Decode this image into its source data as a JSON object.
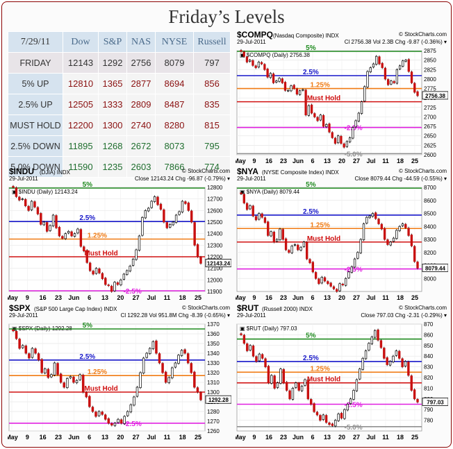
{
  "page": {
    "title": "Friday’s Levels"
  },
  "levels_table": {
    "date": "7/29/11",
    "columns": [
      "Dow",
      "S&P",
      "NAS",
      "NYSE",
      "Russell"
    ],
    "rows": [
      {
        "label": "FRIDAY",
        "kind": "fri",
        "values": [
          "12143",
          "1292",
          "2756",
          "8079",
          "797"
        ]
      },
      {
        "label": "5% UP",
        "kind": "up",
        "values": [
          "12810",
          "1365",
          "2877",
          "8694",
          "856"
        ]
      },
      {
        "label": "2.5% UP",
        "kind": "up",
        "values": [
          "12505",
          "1333",
          "2809",
          "8487",
          "835"
        ]
      },
      {
        "label": "MUST HOLD",
        "kind": "hold",
        "values": [
          "12200",
          "1300",
          "2740",
          "8280",
          "815"
        ]
      },
      {
        "label": "2.5% DOWN",
        "kind": "down",
        "values": [
          "11895",
          "1268",
          "2672",
          "8073",
          "795"
        ]
      },
      {
        "label": "5.0% DOWN",
        "kind": "down",
        "values": [
          "11590",
          "1235",
          "2603",
          "7866",
          "774"
        ]
      }
    ]
  },
  "level_colors": {
    "up5": "#1e8a1e",
    "up25": "#1515c8",
    "up125": "#f07a12",
    "hold": "#d01010",
    "down25": "#e020e0",
    "down5": "#909090"
  },
  "chart_data": [
    {
      "id": "compq",
      "type": "line",
      "title": "$COMPQ",
      "subtitle": "(Nasdaq Composite) INDX",
      "watermark": "© StockCharts.com",
      "date": "29-Jul-2011",
      "stats": "Cl 2756.38  Vol 2.3B  Chg -9.87 (-0.36%)",
      "legend": "$COMPQ (Daily) 2756.38",
      "last_label": "2756.38",
      "xlabels": [
        "May",
        "9",
        "16",
        "23",
        "Jun",
        "6",
        "13",
        "20",
        "27",
        "Jul",
        "11",
        "18",
        "25"
      ],
      "ylim": [
        2600,
        2875
      ],
      "yticks": [
        2600,
        2625,
        2650,
        2675,
        2700,
        2725,
        2750,
        2775,
        2800,
        2825,
        2850,
        2875
      ],
      "levels": [
        {
          "key": "up5",
          "value": 2877,
          "label": "5%"
        },
        {
          "key": "up25",
          "value": 2809,
          "label": "2.5%"
        },
        {
          "key": "up125",
          "value": 2775,
          "label": "1.25%"
        },
        {
          "key": "hold",
          "value": 2740,
          "label": "Must Hold"
        },
        {
          "key": "down25",
          "value": 2672,
          "label": "-2.5%"
        },
        {
          "key": "down5",
          "value": 2603,
          "label": "-5.0%"
        }
      ],
      "closes": [
        2873,
        2860,
        2845,
        2850,
        2836,
        2830,
        2845,
        2840,
        2825,
        2805,
        2815,
        2790,
        2795,
        2802,
        2790,
        2770,
        2770,
        2782,
        2775,
        2760,
        2769,
        2772,
        2705,
        2730,
        2710,
        2700,
        2690,
        2705,
        2675,
        2680,
        2660,
        2645,
        2630,
        2650,
        2630,
        2620,
        2635,
        2645,
        2672,
        2690,
        2710,
        2740,
        2780,
        2820,
        2830,
        2840,
        2860,
        2840,
        2830,
        2800,
        2785,
        2795,
        2790,
        2825,
        2835,
        2848,
        2850,
        2820,
        2790,
        2765,
        2756
      ]
    },
    {
      "id": "indu",
      "type": "line",
      "title": "$INDU",
      "subtitle": "(DJIA) INDX",
      "watermark": "© StockCharts.com",
      "date": "29-Jul-2011",
      "stats": "Close 12143.24  Chg -96.87 (-0.79%)",
      "legend": "$INDU (Daily) 12143.24",
      "last_label": "12143.24",
      "xlabels": [
        "May",
        "9",
        "16",
        "23",
        "Jun",
        "6",
        "13",
        "20",
        "27",
        "Jul",
        "11",
        "18",
        "25"
      ],
      "ylim": [
        11900,
        12800
      ],
      "yticks": [
        11900,
        12000,
        12100,
        12200,
        12300,
        12400,
        12500,
        12600,
        12700,
        12800
      ],
      "levels": [
        {
          "key": "up5",
          "value": 12810,
          "label": "5%"
        },
        {
          "key": "up25",
          "value": 12505,
          "label": "2.5%"
        },
        {
          "key": "up125",
          "value": 12353,
          "label": "1.25%"
        },
        {
          "key": "hold",
          "value": 12200,
          "label": "Must Hold"
        },
        {
          "key": "down25",
          "value": 11895,
          "label": "-2.5%"
        }
      ],
      "closes": [
        12800,
        12720,
        12690,
        12700,
        12640,
        12600,
        12680,
        12630,
        12570,
        12480,
        12500,
        12420,
        12470,
        12560,
        12450,
        12380,
        12360,
        12400,
        12420,
        12380,
        12400,
        12440,
        12290,
        12250,
        12150,
        12080,
        12050,
        12100,
        12060,
        12010,
        11960,
        11950,
        11900,
        11980,
        11960,
        12000,
        12050,
        12080,
        12120,
        12180,
        12260,
        12380,
        12540,
        12600,
        12620,
        12680,
        12720,
        12650,
        12610,
        12500,
        12450,
        12480,
        12500,
        12560,
        12590,
        12680,
        12660,
        12600,
        12500,
        12300,
        12200,
        12143
      ]
    },
    {
      "id": "nya",
      "type": "line",
      "title": "$NYA",
      "subtitle": "(NYSE Composite Index) INDX",
      "watermark": "© StockCharts.com",
      "date": "29-Jul-2011",
      "stats": "Close 8079.44  Chg -44.59 (-0.55%)",
      "legend": "$NYA (Daily) 8079.44",
      "last_label": "8079.44",
      "xlabels": [
        "May",
        "9",
        "16",
        "23",
        "Jun",
        "6",
        "13",
        "20",
        "27",
        "Jul",
        "11",
        "18",
        "25"
      ],
      "ylim": [
        7900,
        8700
      ],
      "yticks": [
        8000,
        8100,
        8200,
        8300,
        8400,
        8500,
        8600,
        8700
      ],
      "levels": [
        {
          "key": "up5",
          "value": 8694,
          "label": "5%"
        },
        {
          "key": "up25",
          "value": 8487,
          "label": "2.5%"
        },
        {
          "key": "up125",
          "value": 8384,
          "label": "1.25%"
        },
        {
          "key": "hold",
          "value": 8280,
          "label": "Must Hold"
        },
        {
          "key": "down25",
          "value": 8073,
          "label": "-2.5%"
        }
      ],
      "closes": [
        8650,
        8580,
        8530,
        8560,
        8480,
        8450,
        8500,
        8470,
        8430,
        8330,
        8360,
        8280,
        8300,
        8380,
        8300,
        8220,
        8200,
        8250,
        8260,
        8220,
        8240,
        8280,
        8150,
        8120,
        8050,
        8000,
        7960,
        8010,
        7980,
        7960,
        7940,
        7920,
        7900,
        7960,
        7950,
        8000,
        8050,
        8090,
        8150,
        8200,
        8300,
        8420,
        8470,
        8480,
        8500,
        8460,
        8420,
        8380,
        8300,
        8260,
        8280,
        8310,
        8370,
        8400,
        8420,
        8390,
        8330,
        8250,
        8130,
        8079
      ]
    },
    {
      "id": "spx",
      "type": "line",
      "title": "$SPX",
      "subtitle": "(S&P 500 Large Cap Index) INDX",
      "watermark": "© StockCharts.com",
      "date": "29-Jul-2011",
      "stats": "Cl 1292.28  Vol 951.8M  Chg -8.39 (-0.65%)",
      "legend": "$SPX (Daily) 1292.28",
      "last_label": "1292.28",
      "xlabels": [
        "May",
        "9",
        "16",
        "23",
        "Jun",
        "6",
        "13",
        "20",
        "27",
        "Jul",
        "11",
        "18",
        "25"
      ],
      "ylim": [
        1260,
        1370
      ],
      "yticks": [
        1260,
        1270,
        1280,
        1290,
        1300,
        1310,
        1320,
        1330,
        1340,
        1350,
        1360,
        1370
      ],
      "levels": [
        {
          "key": "up5",
          "value": 1365,
          "label": "5%"
        },
        {
          "key": "up25",
          "value": 1333,
          "label": "2.5%"
        },
        {
          "key": "up125",
          "value": 1317,
          "label": "1.25%"
        },
        {
          "key": "hold",
          "value": 1300,
          "label": "Must Hold"
        },
        {
          "key": "down25",
          "value": 1268,
          "label": "-2.5%"
        }
      ],
      "closes": [
        1363,
        1355,
        1345,
        1348,
        1340,
        1335,
        1345,
        1340,
        1333,
        1320,
        1324,
        1315,
        1318,
        1330,
        1318,
        1310,
        1305,
        1314,
        1316,
        1310,
        1312,
        1318,
        1300,
        1295,
        1285,
        1280,
        1275,
        1280,
        1277,
        1272,
        1268,
        1266,
        1268,
        1272,
        1268,
        1275,
        1280,
        1287,
        1295,
        1305,
        1320,
        1335,
        1340,
        1345,
        1352,
        1340,
        1330,
        1320,
        1310,
        1315,
        1325,
        1330,
        1338,
        1343,
        1340,
        1330,
        1320,
        1305,
        1300,
        1292
      ]
    },
    {
      "id": "rut",
      "type": "line",
      "title": "$RUT",
      "subtitle": "(Russell 2000) INDX",
      "watermark": "© StockCharts.com",
      "date": "29-Jul-2011",
      "stats": "Close 797.03  Chg -2.31 (-0.29%)",
      "legend": "$RUT (Daily) 797.03",
      "last_label": "797.03",
      "xlabels": [
        "May",
        "9",
        "16",
        "23",
        "Jun",
        "6",
        "13",
        "20",
        "27",
        "Jul",
        "11",
        "18",
        "25"
      ],
      "ylim": [
        770,
        870
      ],
      "yticks": [
        780,
        790,
        800,
        810,
        820,
        830,
        840,
        850,
        860,
        870
      ],
      "levels": [
        {
          "key": "up5",
          "value": 856,
          "label": "5%"
        },
        {
          "key": "up25",
          "value": 835,
          "label": "2.5%"
        },
        {
          "key": "up125",
          "value": 825,
          "label": "1.25%"
        },
        {
          "key": "hold",
          "value": 815,
          "label": "Must Hold"
        },
        {
          "key": "down25",
          "value": 795,
          "label": "-2.5%"
        },
        {
          "key": "down5",
          "value": 774,
          "label": "-5.0%"
        }
      ],
      "closes": [
        860,
        852,
        845,
        850,
        840,
        835,
        842,
        838,
        830,
        815,
        822,
        810,
        815,
        828,
        815,
        808,
        800,
        810,
        815,
        808,
        812,
        818,
        800,
        795,
        788,
        785,
        780,
        785,
        778,
        776,
        775,
        780,
        786,
        782,
        790,
        795,
        800,
        808,
        818,
        828,
        838,
        845,
        852,
        858,
        864,
        855,
        848,
        838,
        832,
        835,
        840,
        845,
        838,
        830,
        835,
        822,
        808,
        800,
        797
      ]
    }
  ]
}
